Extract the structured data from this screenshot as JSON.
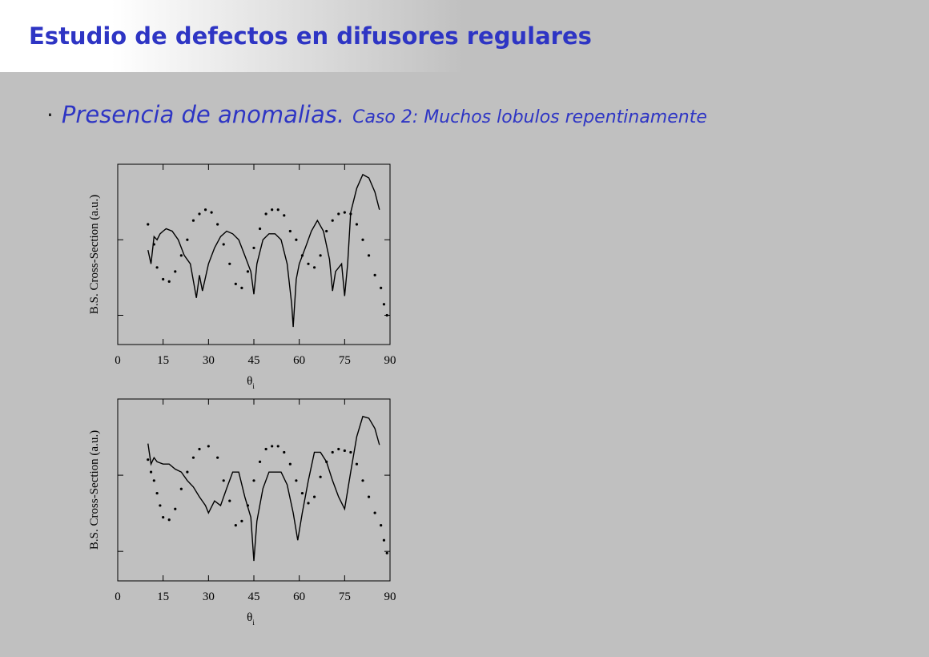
{
  "slide": {
    "title": "Estudio de defectos en difusores regulares",
    "bullet": "·",
    "heading": "Presencia de anomalias.",
    "subheading": "Caso 2: Muchos lobulos repentinamente"
  },
  "chart_data": [
    {
      "type": "line",
      "ylabel": "B.S. Cross-Section (a.u.)",
      "xlabel": "θ",
      "xlabel_sub": "i",
      "xlim": [
        0,
        90
      ],
      "xticks": [
        0,
        15,
        30,
        45,
        60,
        75,
        90
      ],
      "ylim": [
        0.0041,
        1
      ],
      "yticks": [
        0.01,
        0.1,
        1
      ],
      "log_y": true,
      "mirror_ticks": true,
      "series": [
        {
          "style": "solid",
          "color": "#000000",
          "x": [
            10,
            11,
            12,
            13,
            14,
            15,
            16,
            18,
            20,
            22,
            24,
            26,
            27,
            28,
            30,
            32,
            34,
            36,
            38,
            40,
            42,
            44,
            45,
            46,
            48,
            50,
            52,
            54,
            56,
            57.5,
            58,
            59,
            60,
            62,
            64,
            66,
            68,
            70,
            71,
            72,
            74,
            75,
            76,
            77,
            79,
            81,
            83,
            85,
            86.5
          ],
          "values": [
            0.073,
            0.048,
            0.11,
            0.1,
            0.12,
            0.13,
            0.14,
            0.13,
            0.1,
            0.062,
            0.048,
            0.017,
            0.034,
            0.021,
            0.048,
            0.078,
            0.11,
            0.13,
            0.12,
            0.1,
            0.062,
            0.038,
            0.019,
            0.048,
            0.1,
            0.12,
            0.12,
            0.1,
            0.048,
            0.014,
            0.007,
            0.03,
            0.048,
            0.078,
            0.13,
            0.18,
            0.13,
            0.055,
            0.021,
            0.038,
            0.048,
            0.018,
            0.048,
            0.23,
            0.48,
            0.73,
            0.66,
            0.43,
            0.25
          ]
        },
        {
          "style": "dotted",
          "color": "#000000",
          "x": [
            10,
            12,
            13,
            15,
            17,
            19,
            21,
            23,
            25,
            27,
            29,
            31,
            33,
            35,
            37,
            39,
            41,
            43,
            45,
            47,
            49,
            51,
            53,
            55,
            57,
            59,
            61,
            63,
            65,
            67,
            69,
            71,
            73,
            75,
            77,
            79,
            81,
            83,
            85,
            87,
            88,
            89
          ],
          "values": [
            0.16,
            0.087,
            0.043,
            0.03,
            0.028,
            0.038,
            0.062,
            0.1,
            0.18,
            0.22,
            0.25,
            0.23,
            0.16,
            0.087,
            0.048,
            0.026,
            0.023,
            0.038,
            0.078,
            0.14,
            0.22,
            0.25,
            0.25,
            0.21,
            0.13,
            0.1,
            0.062,
            0.048,
            0.043,
            0.062,
            0.13,
            0.18,
            0.22,
            0.23,
            0.22,
            0.16,
            0.1,
            0.062,
            0.034,
            0.023,
            0.014,
            0.01
          ]
        }
      ]
    },
    {
      "type": "line",
      "ylabel": "B.S. Cross-Section (a.u.)",
      "xlabel": "θ",
      "xlabel_sub": "i",
      "xlim": [
        0,
        90
      ],
      "xticks": [
        0,
        15,
        30,
        45,
        60,
        75,
        90
      ],
      "ylim": [
        0.0041,
        1
      ],
      "yticks": [
        0.01,
        0.1,
        1
      ],
      "log_y": true,
      "mirror_ticks": true,
      "series": [
        {
          "style": "solid",
          "color": "#000000",
          "x": [
            10,
            11,
            12,
            13,
            15,
            17,
            19,
            21,
            23,
            25,
            27,
            29,
            30,
            32,
            34,
            36,
            38,
            40,
            42,
            44,
            45,
            46,
            48,
            50,
            52,
            54,
            56,
            58,
            59.5,
            61,
            63,
            65,
            67,
            69,
            71,
            73,
            75,
            77,
            79,
            81,
            83,
            85,
            86.5
          ],
          "values": [
            0.26,
            0.14,
            0.17,
            0.15,
            0.14,
            0.14,
            0.12,
            0.11,
            0.085,
            0.07,
            0.052,
            0.04,
            0.032,
            0.046,
            0.04,
            0.067,
            0.11,
            0.11,
            0.052,
            0.028,
            0.0075,
            0.025,
            0.067,
            0.11,
            0.11,
            0.11,
            0.075,
            0.032,
            0.014,
            0.032,
            0.085,
            0.2,
            0.2,
            0.15,
            0.085,
            0.052,
            0.036,
            0.11,
            0.32,
            0.59,
            0.56,
            0.41,
            0.25
          ]
        },
        {
          "style": "dotted",
          "color": "#000000",
          "x": [
            10,
            11,
            12,
            13,
            14,
            15,
            17,
            19,
            21,
            23,
            25,
            27,
            30,
            33,
            35,
            37,
            39,
            41,
            43,
            45,
            47,
            49,
            51,
            53,
            55,
            57,
            59,
            61,
            63,
            65,
            67,
            69,
            71,
            73,
            75,
            77,
            79,
            81,
            83,
            85,
            87,
            88,
            89
          ],
          "values": [
            0.16,
            0.11,
            0.085,
            0.058,
            0.04,
            0.028,
            0.026,
            0.036,
            0.066,
            0.11,
            0.17,
            0.22,
            0.24,
            0.17,
            0.085,
            0.046,
            0.022,
            0.025,
            0.04,
            0.085,
            0.15,
            0.22,
            0.24,
            0.24,
            0.2,
            0.14,
            0.085,
            0.058,
            0.043,
            0.052,
            0.095,
            0.15,
            0.2,
            0.22,
            0.21,
            0.2,
            0.14,
            0.085,
            0.052,
            0.032,
            0.022,
            0.014,
            0.0095
          ]
        }
      ]
    }
  ]
}
